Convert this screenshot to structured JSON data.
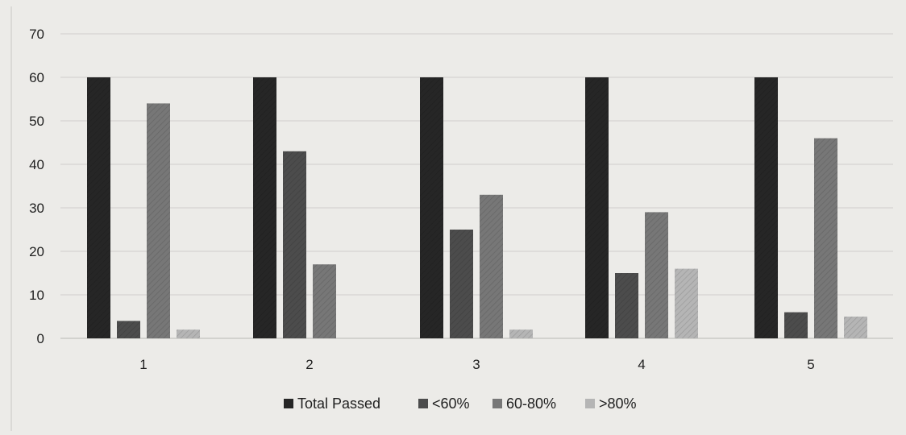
{
  "chart_data": {
    "type": "bar",
    "title": "",
    "xlabel": "",
    "ylabel": "",
    "categories": [
      "1",
      "2",
      "3",
      "4",
      "5"
    ],
    "ylim": [
      0,
      70
    ],
    "yticks": [
      0,
      10,
      20,
      30,
      40,
      50,
      60,
      70
    ],
    "grid": true,
    "legend_position": "bottom",
    "series": [
      {
        "name": "Total Passed",
        "color": "#262626",
        "values": [
          60,
          60,
          60,
          60,
          60
        ]
      },
      {
        "name": "<60%",
        "color": "#4c4c4c",
        "values": [
          4,
          43,
          25,
          15,
          6
        ]
      },
      {
        "name": "60-80%",
        "color": "#777777",
        "values": [
          54,
          17,
          33,
          29,
          46
        ]
      },
      {
        "name": ">80%",
        "color": "#b5b5b5",
        "values": [
          2,
          0,
          2,
          16,
          5
        ]
      }
    ]
  }
}
